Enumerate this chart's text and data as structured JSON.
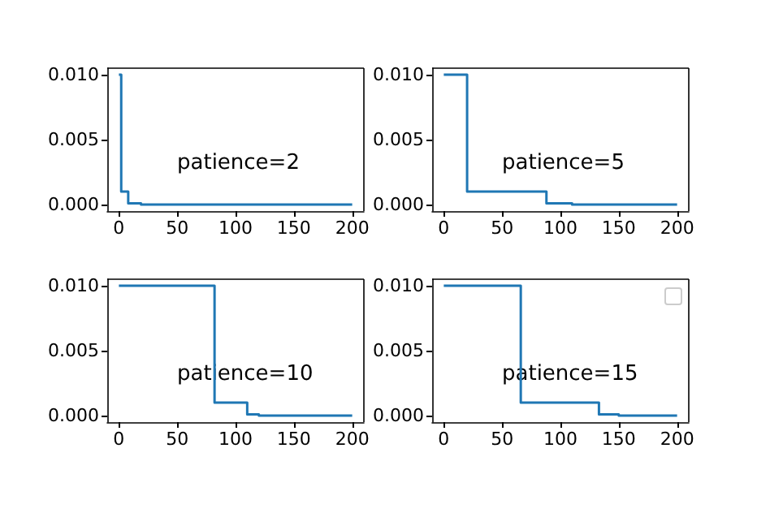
{
  "chart_data": [
    {
      "type": "step",
      "x": [
        0,
        2,
        8,
        19,
        200
      ],
      "values": [
        0.01,
        0.001,
        0.0001,
        0,
        0
      ],
      "color": "#1f77b4",
      "xlim": [
        -10,
        210
      ],
      "ylim": [
        -0.0005,
        0.0105
      ],
      "xticks": [
        0,
        50,
        100,
        150,
        200
      ],
      "yticks": [
        {
          "value": 0,
          "label": "0.000"
        },
        {
          "value": 0.005,
          "label": "0.005"
        },
        {
          "value": 0.01,
          "label": "0.010"
        }
      ],
      "annotations": [
        "patience=2"
      ],
      "marker": "none",
      "grid": false
    },
    {
      "type": "step",
      "x": [
        0,
        20,
        88,
        110,
        200
      ],
      "values": [
        0.01,
        0.001,
        0.0001,
        0,
        0
      ],
      "color": "#1f77b4",
      "xlim": [
        -10,
        210
      ],
      "ylim": [
        -0.0005,
        0.0105
      ],
      "xticks": [
        0,
        50,
        100,
        150,
        200
      ],
      "yticks": [
        {
          "value": 0,
          "label": "0.000"
        },
        {
          "value": 0.005,
          "label": "0.005"
        },
        {
          "value": 0.01,
          "label": "0.010"
        }
      ],
      "annotations": [
        "patience=5"
      ],
      "marker": "none",
      "grid": false
    },
    {
      "type": "step",
      "x": [
        0,
        82,
        110,
        120,
        200
      ],
      "values": [
        0.01,
        0.001,
        0.0001,
        0,
        0
      ],
      "color": "#1f77b4",
      "xlim": [
        -10,
        210
      ],
      "ylim": [
        -0.0005,
        0.0105
      ],
      "xticks": [
        0,
        50,
        100,
        150,
        200
      ],
      "yticks": [
        {
          "value": 0,
          "label": "0.000"
        },
        {
          "value": 0.005,
          "label": "0.005"
        },
        {
          "value": 0.01,
          "label": "0.010"
        }
      ],
      "annotations": [
        "patience=10"
      ],
      "marker": "none",
      "grid": false
    },
    {
      "type": "step",
      "x": [
        0,
        66,
        133,
        150,
        200
      ],
      "values": [
        0.01,
        0.001,
        0.0001,
        0,
        0
      ],
      "color": "#1f77b4",
      "xlim": [
        -10,
        210
      ],
      "ylim": [
        -0.0005,
        0.0105
      ],
      "xticks": [
        0,
        50,
        100,
        150,
        200
      ],
      "yticks": [
        {
          "value": 0,
          "label": "0.000"
        },
        {
          "value": 0.005,
          "label": "0.005"
        },
        {
          "value": 0.01,
          "label": "0.010"
        }
      ],
      "annotations": [
        "patience=15"
      ],
      "marker": "none",
      "grid": false
    }
  ]
}
